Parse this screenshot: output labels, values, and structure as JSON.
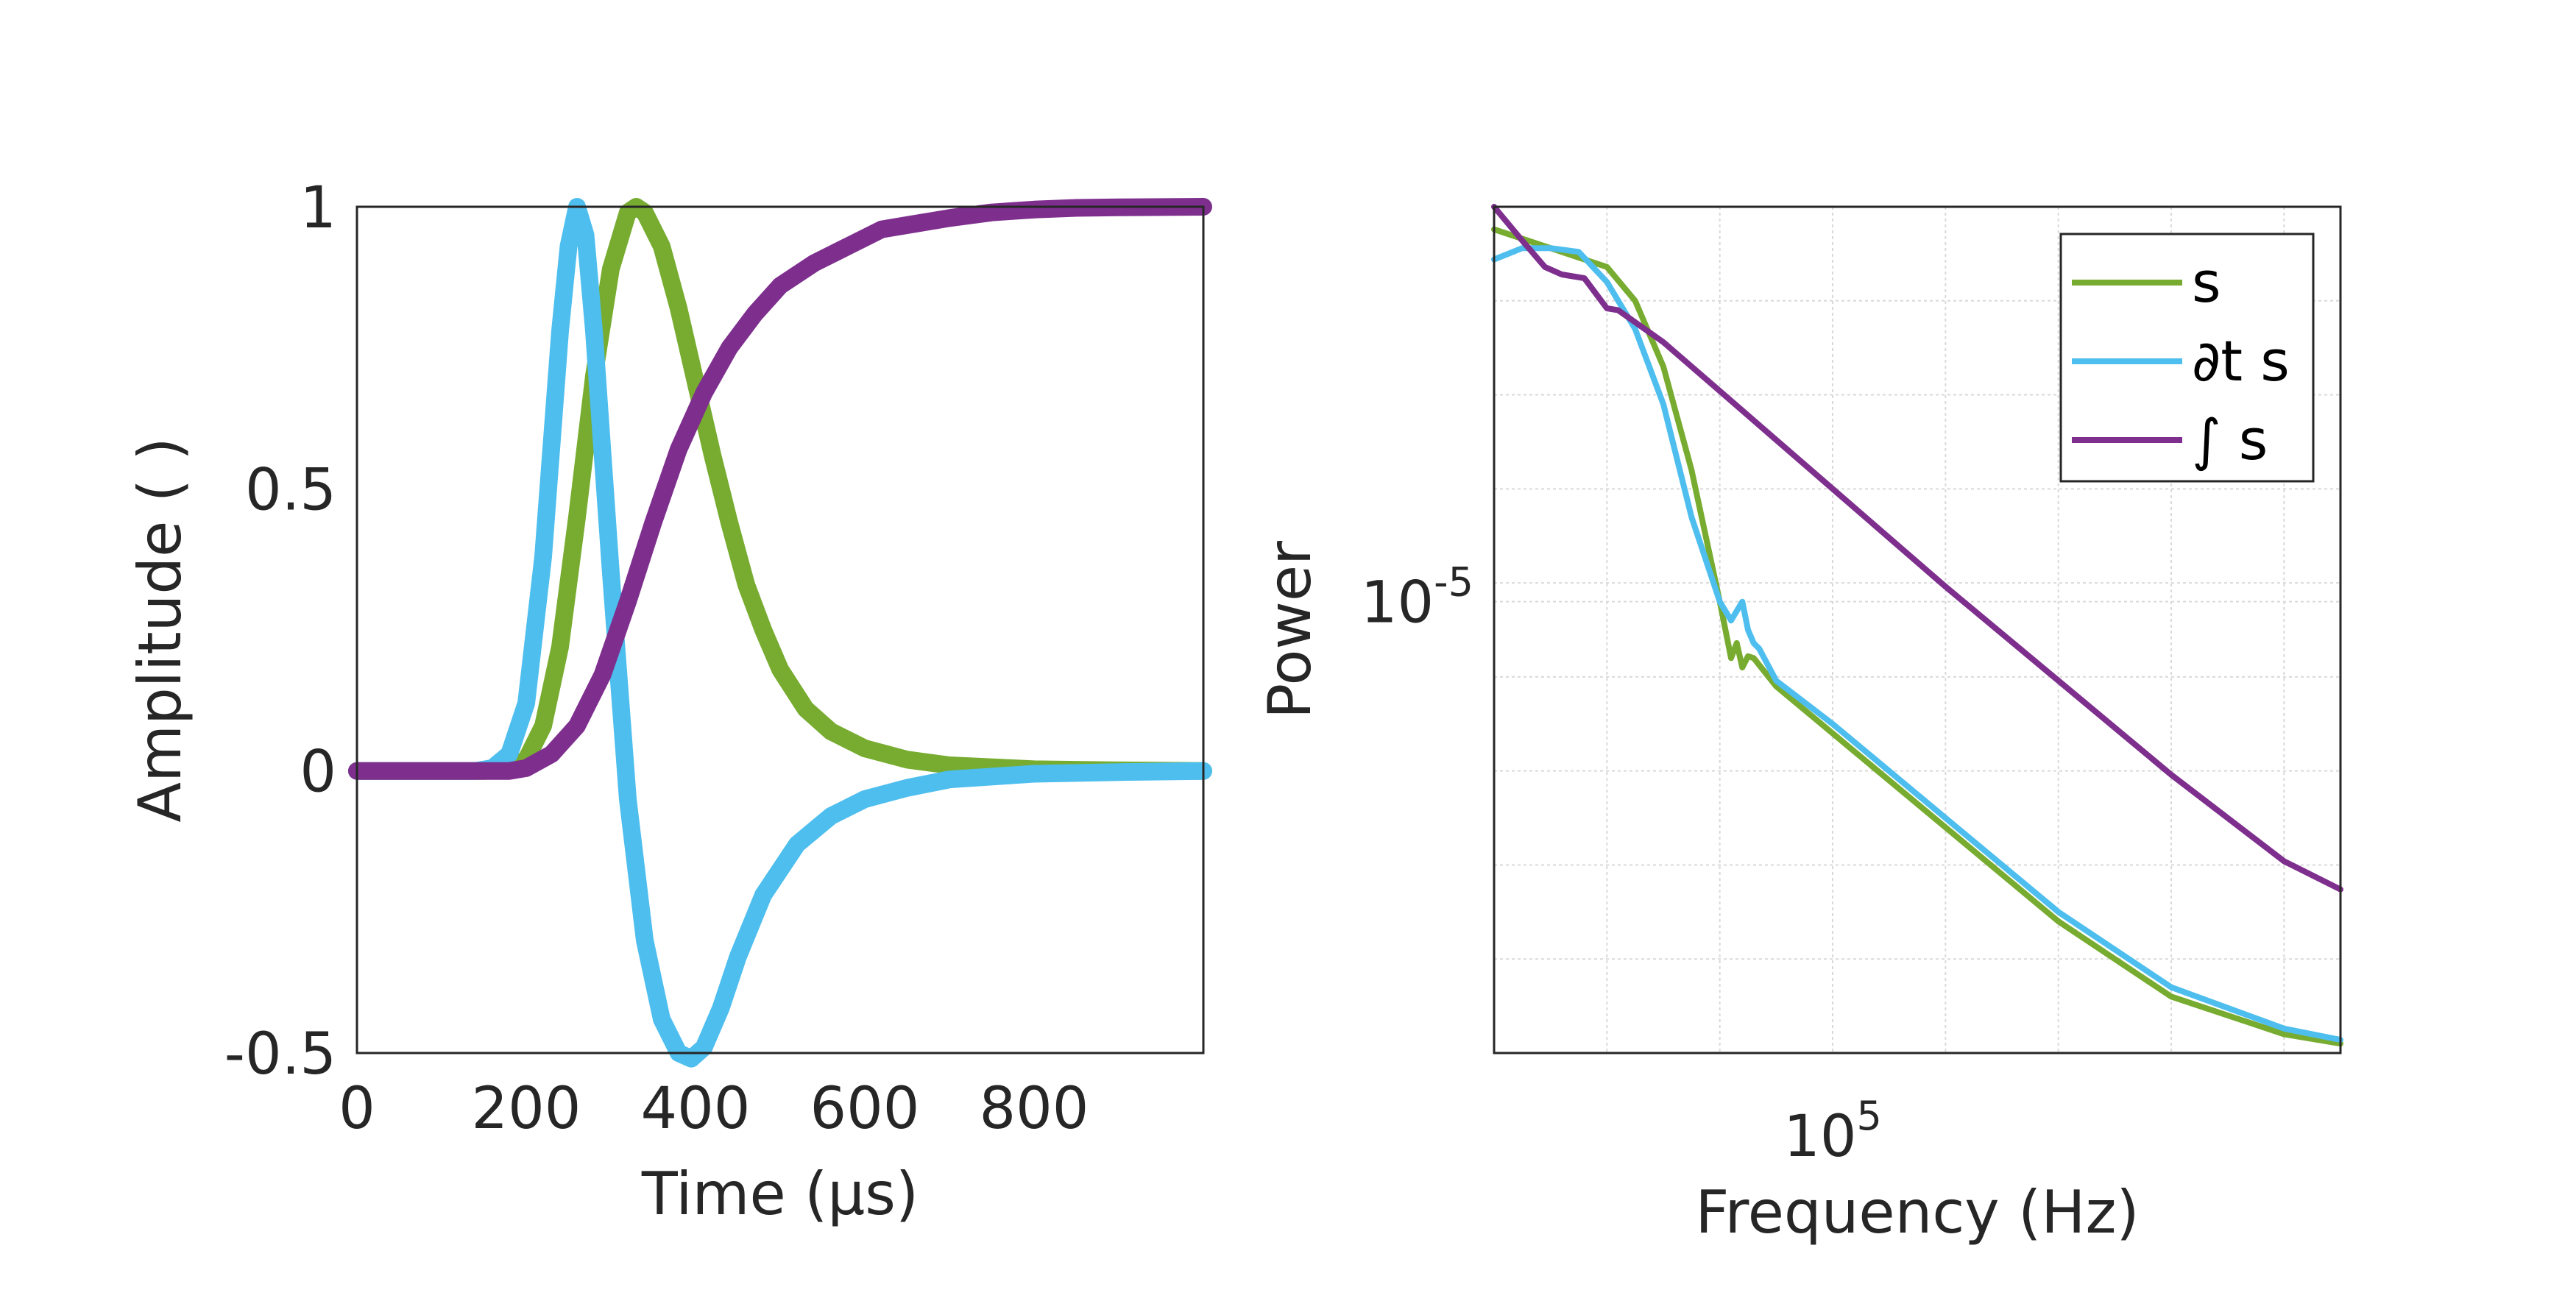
{
  "chart_data": [
    {
      "type": "line",
      "xlabel": "Time (µs)",
      "ylabel": "Amplitude ( )",
      "xlim": [
        0,
        1000
      ],
      "ylim": [
        -0.5,
        1
      ],
      "xticks": [
        0,
        200,
        400,
        600,
        800
      ],
      "xtick_labels": [
        "0",
        "200",
        "400",
        "600",
        "800"
      ],
      "yticks": [
        1,
        0.5,
        0,
        -0.5
      ],
      "ytick_labels": [
        "1",
        "0.5",
        "0",
        "-0.5"
      ],
      "grid": false,
      "series": [
        {
          "name": "s",
          "color": "#77AC30",
          "x": [
            0,
            150,
            180,
            200,
            220,
            240,
            260,
            280,
            300,
            320,
            330,
            340,
            360,
            380,
            400,
            420,
            440,
            460,
            480,
            500,
            530,
            560,
            600,
            650,
            700,
            800,
            900,
            1000
          ],
          "y": [
            0,
            0,
            0.005,
            0.02,
            0.08,
            0.22,
            0.45,
            0.7,
            0.89,
            0.99,
            1.0,
            0.99,
            0.93,
            0.82,
            0.69,
            0.56,
            0.44,
            0.33,
            0.25,
            0.18,
            0.11,
            0.07,
            0.04,
            0.02,
            0.01,
            0.003,
            0.001,
            0
          ]
        },
        {
          "name": "∂t s",
          "color": "#4DBEEE",
          "x": [
            0,
            140,
            160,
            180,
            200,
            220,
            240,
            250,
            260,
            270,
            280,
            300,
            320,
            340,
            360,
            380,
            395,
            410,
            430,
            450,
            480,
            520,
            560,
            600,
            650,
            700,
            800,
            900,
            1000
          ],
          "y": [
            0,
            0,
            0.005,
            0.03,
            0.12,
            0.38,
            0.78,
            0.93,
            1.0,
            0.95,
            0.78,
            0.35,
            -0.05,
            -0.3,
            -0.44,
            -0.5,
            -0.51,
            -0.49,
            -0.42,
            -0.33,
            -0.22,
            -0.13,
            -0.08,
            -0.05,
            -0.03,
            -0.015,
            -0.005,
            -0.002,
            0
          ]
        },
        {
          "name": "∫ s",
          "color": "#7E2F8E",
          "x": [
            0,
            180,
            200,
            230,
            260,
            290,
            320,
            350,
            380,
            410,
            440,
            470,
            500,
            540,
            580,
            620,
            660,
            700,
            750,
            800,
            850,
            900,
            1000
          ],
          "y": [
            0,
            0,
            0.005,
            0.03,
            0.08,
            0.17,
            0.3,
            0.44,
            0.57,
            0.67,
            0.75,
            0.81,
            0.86,
            0.9,
            0.93,
            0.96,
            0.97,
            0.98,
            0.99,
            0.995,
            0.998,
            0.999,
            1.0
          ]
        }
      ]
    },
    {
      "type": "line",
      "xlabel": "Frequency (Hz)",
      "ylabel": "Power",
      "xscale": "log",
      "yscale": "log",
      "xlim_log10": [
        4.4,
        5.9
      ],
      "ylim_log10": [
        -7.4,
        -2.9
      ],
      "xticks_log10": [
        5
      ],
      "xtick_labels": [
        {
          "base": "10",
          "exp": "5"
        }
      ],
      "yticks_log10": [
        -5
      ],
      "ytick_labels": [
        {
          "base": "10",
          "exp": "-5"
        }
      ],
      "grid": true,
      "legend_position": "top-right",
      "series": [
        {
          "name": "s",
          "color": "#77AC30",
          "log10_x": [
            4.4,
            4.5,
            4.6,
            4.65,
            4.7,
            4.75,
            4.8,
            4.82,
            4.83,
            4.84,
            4.85,
            4.86,
            4.9,
            5.0,
            5.2,
            5.4,
            5.6,
            5.8,
            5.9
          ],
          "log10_y": [
            -3.02,
            -3.12,
            -3.22,
            -3.4,
            -3.75,
            -4.3,
            -5.0,
            -5.3,
            -5.22,
            -5.35,
            -5.29,
            -5.3,
            -5.45,
            -5.7,
            -6.2,
            -6.7,
            -7.1,
            -7.3,
            -7.35
          ]
        },
        {
          "name": "∂t s",
          "color": "#4DBEEE",
          "log10_x": [
            4.4,
            4.45,
            4.5,
            4.55,
            4.6,
            4.65,
            4.7,
            4.75,
            4.8,
            4.82,
            4.84,
            4.85,
            4.86,
            4.87,
            4.9,
            5.0,
            5.2,
            5.4,
            5.6,
            5.8,
            5.9
          ],
          "log10_y": [
            -3.18,
            -3.12,
            -3.12,
            -3.14,
            -3.3,
            -3.55,
            -3.95,
            -4.55,
            -5.0,
            -5.1,
            -5.0,
            -5.15,
            -5.22,
            -5.25,
            -5.42,
            -5.65,
            -6.15,
            -6.65,
            -7.05,
            -7.27,
            -7.33
          ]
        },
        {
          "name": "∫ s",
          "color": "#7E2F8E",
          "log10_x": [
            4.4,
            4.45,
            4.49,
            4.52,
            4.56,
            4.6,
            4.62,
            4.7,
            4.8,
            5.0,
            5.2,
            5.4,
            5.6,
            5.8,
            5.9
          ],
          "log10_y": [
            -2.9,
            -3.08,
            -3.22,
            -3.26,
            -3.28,
            -3.44,
            -3.45,
            -3.62,
            -3.88,
            -4.4,
            -4.92,
            -5.42,
            -5.92,
            -6.38,
            -6.53
          ]
        }
      ]
    }
  ]
}
